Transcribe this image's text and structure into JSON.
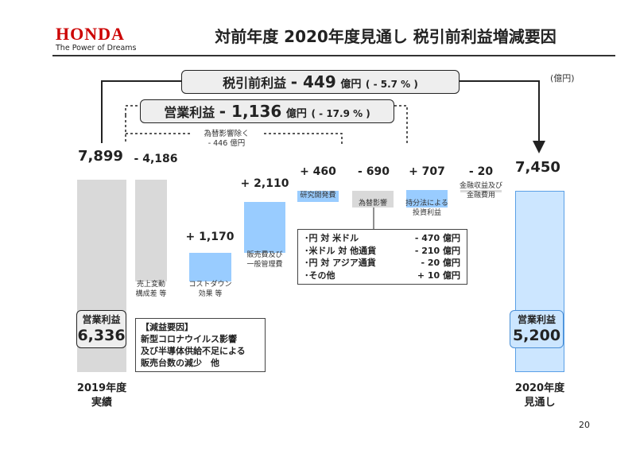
{
  "header": {
    "logo_text": "HONDA",
    "tagline": "The Power of Dreams",
    "title": "対前年度 2020年度見通し 税引前利益増減要因"
  },
  "unit_note": "(億円)",
  "pretax_box": {
    "label": "税引前利益",
    "value": "- 449",
    "unit": "億円",
    "pct": "( - 5.7 % )"
  },
  "op_box": {
    "label": "営業利益",
    "value": "- 1,136",
    "unit": "億円",
    "pct": "( - 17.9 % )"
  },
  "fx_excl_note": {
    "line1": "為替影響除く",
    "line2": "- 446 億円"
  },
  "fx_breakdown": [
    {
      "label": "･円 対 米ドル",
      "value": "- 470 億円"
    },
    {
      "label": "･米ドル 対 他通貨",
      "value": "- 210 億円"
    },
    {
      "label": "･円 対 アジア通貨",
      "value": "- 20 億円"
    },
    {
      "label": "･その他",
      "value": "+ 10 億円"
    }
  ],
  "decrease_factors": {
    "title": "【減益要因】",
    "lines": [
      "新型コロナウイルス影響",
      "及び半導体供給不足による",
      "販売台数の減少　他"
    ]
  },
  "start_op_label": {
    "label": "営業利益",
    "value": "6,336"
  },
  "end_op_label": {
    "label": "営業利益",
    "value": "5,200"
  },
  "page_number": "20",
  "colors": {
    "brand": "#cc0000",
    "total_bar": "#d9d9d9",
    "decrease_bar": "#d9d9d9",
    "increase_bar": "#99ccff",
    "end_bar": "#cce6ff",
    "end_bar_border": "#5aa0e6"
  },
  "chart_data": {
    "type": "bar",
    "subtype": "waterfall",
    "title": "対前年度 2020年度見通し 税引前利益増減要因",
    "unit": "億円",
    "steps": [
      {
        "key": "start",
        "kind": "total",
        "value": 7899,
        "value_label": "7,899",
        "category": [
          "2019年度",
          "実績"
        ],
        "note": []
      },
      {
        "key": "sales",
        "kind": "decrease",
        "value": -4186,
        "value_label": "- 4,186",
        "note": [
          "売上変動",
          "構成差 等"
        ]
      },
      {
        "key": "cost",
        "kind": "increase",
        "value": 1170,
        "value_label": "+ 1,170",
        "note": [
          "コストダウン",
          "効果 等"
        ]
      },
      {
        "key": "sga",
        "kind": "increase",
        "value": 2110,
        "value_label": "+ 2,110",
        "note": [
          "販売費及び",
          "一般管理費"
        ]
      },
      {
        "key": "rnd",
        "kind": "increase",
        "value": 460,
        "value_label": "+ 460",
        "note": [
          "研究開発費"
        ]
      },
      {
        "key": "fx",
        "kind": "decrease",
        "value": -690,
        "value_label": "- 690",
        "note": [
          "為替影響"
        ]
      },
      {
        "key": "equity",
        "kind": "increase",
        "value": 707,
        "value_label": "+ 707",
        "note": [
          "持分法による",
          "投資利益"
        ]
      },
      {
        "key": "finance",
        "kind": "decrease",
        "value": -20,
        "value_label": "- 20",
        "note": [
          "金融収益及び",
          "金融費用"
        ]
      },
      {
        "key": "end",
        "kind": "total",
        "value": 7450,
        "value_label": "7,450",
        "category": [
          "2020年度",
          "見通し"
        ],
        "note": []
      }
    ],
    "operating_profit": {
      "start": 6336,
      "end": 5200
    },
    "ylim": [
      0,
      7899
    ]
  }
}
